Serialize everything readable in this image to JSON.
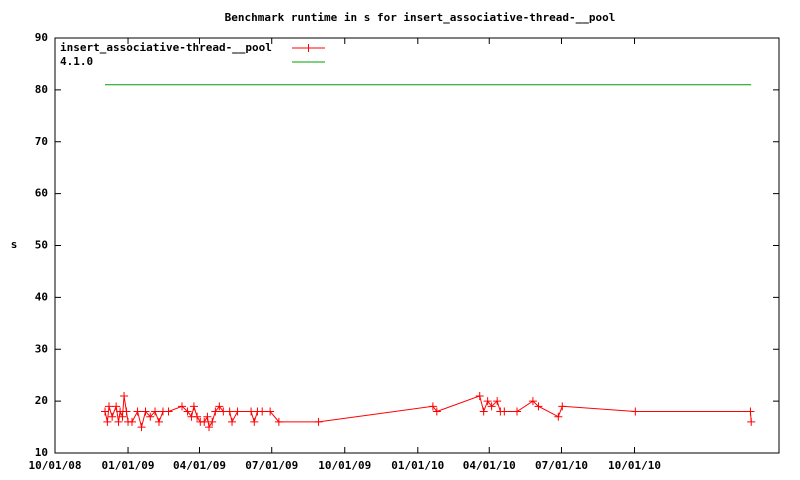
{
  "chart_data": {
    "type": "line",
    "title": "Benchmark runtime in s for insert_associative-thread-__pool",
    "y_label": "s",
    "xlim": [
      "2008-10-01",
      "2011-04-01"
    ],
    "xticks": [
      {
        "value": "2008-10-01",
        "label": "10/01/08"
      },
      {
        "value": "2009-01-01",
        "label": "01/01/09"
      },
      {
        "value": "2009-04-01",
        "label": "04/01/09"
      },
      {
        "value": "2009-07-01",
        "label": "07/01/09"
      },
      {
        "value": "2009-10-01",
        "label": "10/01/09"
      },
      {
        "value": "2010-01-01",
        "label": "01/01/10"
      },
      {
        "value": "2010-04-01",
        "label": "04/01/10"
      },
      {
        "value": "2010-07-01",
        "label": "07/01/10"
      },
      {
        "value": "2010-10-01",
        "label": "10/01/10"
      }
    ],
    "ylim": [
      10,
      90
    ],
    "yticks": [
      10,
      20,
      30,
      40,
      50,
      60,
      70,
      80,
      90
    ],
    "grid": false,
    "legend": "top-left",
    "series": [
      {
        "name": "insert_associative-thread-__pool",
        "color": "#ff0000",
        "marker": "plus",
        "x": [
          "2008-12-03",
          "2008-12-06",
          "2008-12-08",
          "2008-12-12",
          "2008-12-17",
          "2008-12-20",
          "2008-12-22",
          "2008-12-25",
          "2008-12-27",
          "2008-12-30",
          "2009-01-01",
          "2009-01-06",
          "2009-01-13",
          "2009-01-18",
          "2009-01-23",
          "2009-01-29",
          "2009-02-04",
          "2009-02-09",
          "2009-02-14",
          "2009-02-21",
          "2009-03-10",
          "2009-03-17",
          "2009-03-22",
          "2009-03-25",
          "2009-03-29",
          "2009-04-02",
          "2009-04-07",
          "2009-04-11",
          "2009-04-13",
          "2009-04-17",
          "2009-04-21",
          "2009-04-26",
          "2009-05-01",
          "2009-05-09",
          "2009-05-12",
          "2009-05-19",
          "2009-06-05",
          "2009-06-09",
          "2009-06-13",
          "2009-06-19",
          "2009-06-29",
          "2009-07-10",
          "2009-08-29",
          "2010-01-20",
          "2010-01-25",
          "2010-03-20",
          "2010-03-25",
          "2010-03-30",
          "2010-04-04",
          "2010-04-11",
          "2010-04-15",
          "2010-04-20",
          "2010-05-06",
          "2010-05-26",
          "2010-06-02",
          "2010-06-27",
          "2010-07-02",
          "2010-10-02",
          "2011-02-24",
          "2011-02-25"
        ],
        "values": [
          18,
          16,
          19,
          17,
          19,
          16,
          18,
          17,
          21,
          18,
          16,
          16,
          18,
          15,
          18,
          17,
          18,
          16,
          18,
          18,
          19,
          18,
          17,
          19,
          17,
          16,
          16,
          17,
          15,
          16,
          18,
          19,
          18,
          18,
          16,
          18,
          18,
          16,
          18,
          18,
          18,
          16,
          16,
          19,
          18,
          21,
          18,
          20,
          19,
          20,
          18,
          18,
          18,
          20,
          19,
          17,
          19,
          18,
          18,
          16
        ]
      },
      {
        "name": "4.1.0",
        "color": "#00a000",
        "x": [
          "2008-12-03",
          "2011-02-25"
        ],
        "values": [
          81,
          81
        ]
      }
    ]
  }
}
